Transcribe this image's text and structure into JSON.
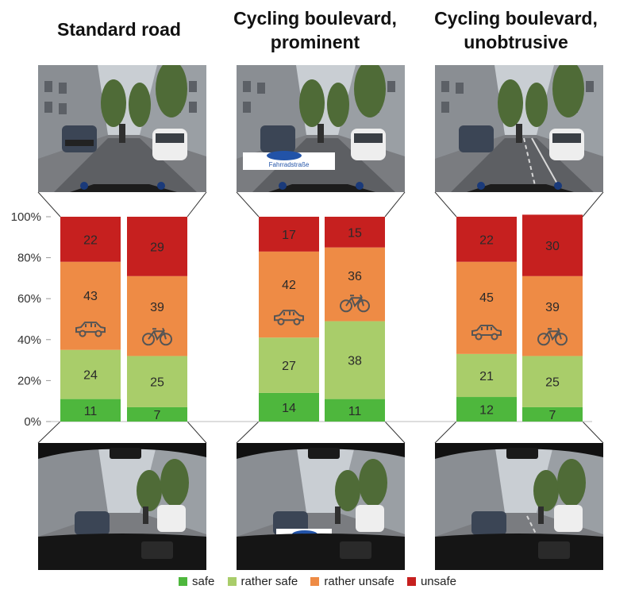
{
  "colors": {
    "safe": "#4eb73d",
    "rather_safe": "#a9cd6a",
    "rather_unsafe": "#ee8b45",
    "unsafe": "#c6201f"
  },
  "panels": [
    {
      "title": "Standard road"
    },
    {
      "title": "Cycling boulevard,\nprominent"
    },
    {
      "title": "Cycling boulevard,\nunobtrusive"
    }
  ],
  "photo_labels": {
    "prominent_marking": "Fahrradstraße"
  },
  "legend": [
    "safe",
    "rather safe",
    "rather unsafe",
    "unsafe"
  ],
  "chart_data": {
    "type": "bar",
    "stacked": true,
    "categories": [
      "Standard road car",
      "Standard road bike",
      "Cycling boulevard, prominent car",
      "Cycling boulevard, prominent bike",
      "Cycling boulevard, unobtrusive car",
      "Cycling boulevard, unobtrusive bike"
    ],
    "category_icons": [
      "car-icon",
      "bicycle-icon",
      "car-icon",
      "bicycle-icon",
      "car-icon",
      "bicycle-icon"
    ],
    "series": [
      {
        "name": "safe",
        "values": [
          11,
          7,
          14,
          11,
          12,
          7
        ]
      },
      {
        "name": "rather safe",
        "values": [
          24,
          25,
          27,
          38,
          21,
          25
        ]
      },
      {
        "name": "rather unsafe",
        "values": [
          43,
          39,
          42,
          36,
          45,
          39
        ]
      },
      {
        "name": "unsafe",
        "values": [
          22,
          29,
          17,
          15,
          22,
          30
        ]
      }
    ],
    "y_ticks": [
      "0%",
      "20%",
      "40%",
      "60%",
      "80%",
      "100%"
    ],
    "ylim": [
      0,
      100
    ]
  }
}
